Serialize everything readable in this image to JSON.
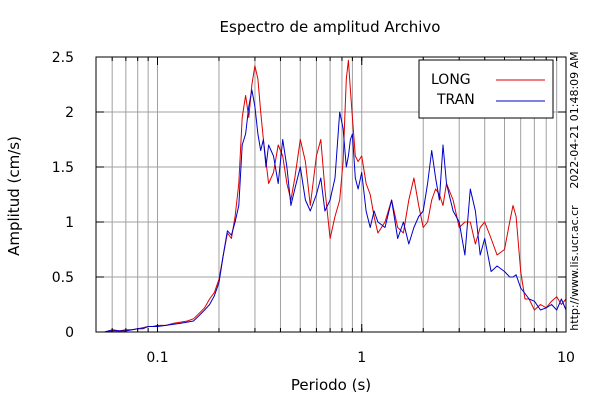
{
  "chart_data": {
    "type": "line",
    "title": "Espectro de amplitud Archivo",
    "xlabel": "Periodo (s)",
    "ylabel": "Amplitud (cm/s)",
    "xscale": "log",
    "xlim": [
      0.05,
      10
    ],
    "ylim": [
      0,
      2.5
    ],
    "xticks": [
      0.1,
      1,
      10
    ],
    "xtick_labels": [
      "0.1",
      "1",
      "10"
    ],
    "yticks": [
      0,
      0.5,
      1,
      1.5,
      2,
      2.5
    ],
    "ytick_labels": [
      "0",
      "0.5",
      "1",
      "1.5",
      "2",
      "2.5"
    ],
    "grid": true,
    "legend_position": "top-right",
    "side_text_date": "2022-04-21 01:48:09 AM",
    "side_text_url": "http://www.lis.ucr.ac.cr",
    "series": [
      {
        "name": "LONG",
        "color": "#e00000",
        "x": [
          0.055,
          0.06,
          0.065,
          0.07,
          0.075,
          0.08,
          0.085,
          0.09,
          0.095,
          0.1,
          0.11,
          0.12,
          0.13,
          0.14,
          0.15,
          0.16,
          0.17,
          0.18,
          0.19,
          0.2,
          0.21,
          0.22,
          0.23,
          0.24,
          0.25,
          0.26,
          0.27,
          0.28,
          0.29,
          0.3,
          0.31,
          0.32,
          0.33,
          0.34,
          0.35,
          0.37,
          0.39,
          0.41,
          0.43,
          0.45,
          0.47,
          0.5,
          0.53,
          0.56,
          0.6,
          0.63,
          0.66,
          0.7,
          0.74,
          0.78,
          0.81,
          0.84,
          0.86,
          0.88,
          0.9,
          0.93,
          0.96,
          1.0,
          1.05,
          1.1,
          1.15,
          1.2,
          1.3,
          1.4,
          1.5,
          1.6,
          1.7,
          1.8,
          1.9,
          2.0,
          2.1,
          2.2,
          2.3,
          2.4,
          2.5,
          2.6,
          2.8,
          3.0,
          3.2,
          3.4,
          3.6,
          3.8,
          4.0,
          4.3,
          4.6,
          5.0,
          5.3,
          5.5,
          5.7,
          6.0,
          6.3,
          6.6,
          7.0,
          7.5,
          8.0,
          8.5,
          9.0,
          9.5,
          10.0
        ],
        "y": [
          0.0,
          0.01,
          0.01,
          0.02,
          0.02,
          0.03,
          0.04,
          0.05,
          0.05,
          0.06,
          0.06,
          0.08,
          0.09,
          0.1,
          0.12,
          0.17,
          0.22,
          0.3,
          0.36,
          0.48,
          0.7,
          0.9,
          0.85,
          1.05,
          1.35,
          1.95,
          2.15,
          1.95,
          2.25,
          2.42,
          2.3,
          2.0,
          1.75,
          1.55,
          1.35,
          1.45,
          1.7,
          1.6,
          1.35,
          1.2,
          1.4,
          1.75,
          1.55,
          1.15,
          1.6,
          1.75,
          1.3,
          0.85,
          1.05,
          1.2,
          1.55,
          2.3,
          2.47,
          2.2,
          1.95,
          1.6,
          1.55,
          1.6,
          1.35,
          1.25,
          1.05,
          0.9,
          1.0,
          1.2,
          0.95,
          0.9,
          1.2,
          1.4,
          1.15,
          0.95,
          1.0,
          1.2,
          1.3,
          1.25,
          1.15,
          1.35,
          1.2,
          0.95,
          1.0,
          1.0,
          0.8,
          0.95,
          1.0,
          0.85,
          0.7,
          0.75,
          1.0,
          1.15,
          1.05,
          0.55,
          0.3,
          0.3,
          0.2,
          0.25,
          0.22,
          0.28,
          0.32,
          0.25,
          0.3
        ]
      },
      {
        "name": "TRAN",
        "color": "#0000c8",
        "x": [
          0.055,
          0.06,
          0.065,
          0.07,
          0.075,
          0.08,
          0.085,
          0.09,
          0.095,
          0.1,
          0.11,
          0.12,
          0.13,
          0.14,
          0.15,
          0.16,
          0.17,
          0.18,
          0.19,
          0.2,
          0.21,
          0.22,
          0.23,
          0.24,
          0.25,
          0.26,
          0.27,
          0.28,
          0.29,
          0.3,
          0.31,
          0.32,
          0.33,
          0.34,
          0.35,
          0.37,
          0.39,
          0.41,
          0.43,
          0.45,
          0.47,
          0.5,
          0.53,
          0.56,
          0.6,
          0.63,
          0.66,
          0.7,
          0.74,
          0.78,
          0.81,
          0.84,
          0.86,
          0.88,
          0.9,
          0.93,
          0.96,
          1.0,
          1.05,
          1.1,
          1.15,
          1.2,
          1.3,
          1.4,
          1.5,
          1.6,
          1.7,
          1.8,
          1.9,
          2.0,
          2.1,
          2.2,
          2.3,
          2.4,
          2.5,
          2.6,
          2.8,
          3.0,
          3.2,
          3.4,
          3.6,
          3.8,
          4.0,
          4.3,
          4.6,
          5.0,
          5.3,
          5.5,
          5.7,
          6.0,
          6.3,
          6.6,
          7.0,
          7.5,
          8.0,
          8.5,
          9.0,
          9.5,
          10.0
        ],
        "y": [
          0.0,
          0.02,
          0.01,
          0.01,
          0.02,
          0.03,
          0.03,
          0.05,
          0.05,
          0.05,
          0.06,
          0.07,
          0.08,
          0.09,
          0.1,
          0.15,
          0.2,
          0.25,
          0.33,
          0.45,
          0.7,
          0.92,
          0.88,
          1.0,
          1.15,
          1.7,
          1.8,
          2.05,
          2.2,
          2.05,
          1.8,
          1.65,
          1.75,
          1.5,
          1.7,
          1.6,
          1.35,
          1.75,
          1.5,
          1.15,
          1.3,
          1.5,
          1.2,
          1.1,
          1.25,
          1.4,
          1.1,
          1.2,
          1.4,
          2.0,
          1.85,
          1.5,
          1.6,
          1.75,
          1.8,
          1.4,
          1.3,
          1.45,
          1.1,
          0.95,
          1.1,
          1.0,
          0.95,
          1.2,
          0.85,
          1.0,
          0.8,
          0.95,
          1.05,
          1.1,
          1.35,
          1.65,
          1.4,
          1.2,
          1.7,
          1.35,
          1.1,
          1.0,
          0.7,
          1.3,
          1.1,
          0.7,
          0.85,
          0.55,
          0.6,
          0.55,
          0.5,
          0.5,
          0.52,
          0.4,
          0.35,
          0.3,
          0.28,
          0.2,
          0.22,
          0.25,
          0.2,
          0.3,
          0.2
        ]
      }
    ]
  }
}
